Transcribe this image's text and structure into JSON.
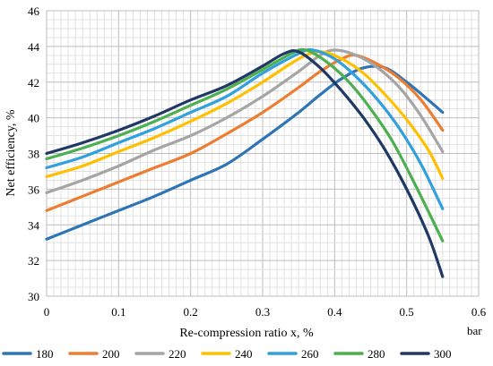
{
  "chart_data": {
    "type": "line",
    "title": "",
    "xlabel": "Re-compression ratio x, %",
    "ylabel": "Net efficiency, %",
    "legend_title": "bar",
    "legend_position": "bottom",
    "xlim": [
      0,
      0.6
    ],
    "ylim": [
      30,
      46
    ],
    "xticks": [
      "0",
      "0.1",
      "0.2",
      "0.3",
      "0.4",
      "0.5",
      "0.6"
    ],
    "yticks": [
      "30",
      "32",
      "34",
      "36",
      "38",
      "40",
      "42",
      "44",
      "46"
    ],
    "grid": true,
    "series": [
      {
        "name": "180",
        "color": "#2E75B6",
        "points": [
          [
            0,
            33.2
          ],
          [
            0.05,
            34.0
          ],
          [
            0.1,
            34.8
          ],
          [
            0.15,
            35.6
          ],
          [
            0.2,
            36.5
          ],
          [
            0.25,
            37.4
          ],
          [
            0.3,
            38.8
          ],
          [
            0.35,
            40.3
          ],
          [
            0.38,
            41.3
          ],
          [
            0.41,
            42.2
          ],
          [
            0.44,
            42.8
          ],
          [
            0.47,
            42.8
          ],
          [
            0.5,
            42.0
          ],
          [
            0.53,
            41.0
          ],
          [
            0.55,
            40.3
          ]
        ]
      },
      {
        "name": "200",
        "color": "#ED7D31",
        "points": [
          [
            0,
            34.8
          ],
          [
            0.05,
            35.6
          ],
          [
            0.1,
            36.4
          ],
          [
            0.15,
            37.2
          ],
          [
            0.2,
            38.0
          ],
          [
            0.25,
            39.1
          ],
          [
            0.3,
            40.3
          ],
          [
            0.35,
            41.7
          ],
          [
            0.38,
            42.6
          ],
          [
            0.41,
            43.3
          ],
          [
            0.43,
            43.5
          ],
          [
            0.46,
            43.0
          ],
          [
            0.49,
            42.2
          ],
          [
            0.52,
            41.0
          ],
          [
            0.55,
            39.3
          ]
        ]
      },
      {
        "name": "220",
        "color": "#A5A5A5",
        "points": [
          [
            0,
            35.8
          ],
          [
            0.05,
            36.5
          ],
          [
            0.1,
            37.3
          ],
          [
            0.15,
            38.2
          ],
          [
            0.2,
            39.0
          ],
          [
            0.25,
            40.0
          ],
          [
            0.3,
            41.2
          ],
          [
            0.35,
            42.6
          ],
          [
            0.38,
            43.5
          ],
          [
            0.4,
            43.8
          ],
          [
            0.43,
            43.5
          ],
          [
            0.46,
            42.8
          ],
          [
            0.49,
            41.7
          ],
          [
            0.52,
            40.1
          ],
          [
            0.55,
            38.1
          ]
        ]
      },
      {
        "name": "240",
        "color": "#FFC000",
        "points": [
          [
            0,
            36.7
          ],
          [
            0.05,
            37.3
          ],
          [
            0.1,
            38.1
          ],
          [
            0.15,
            38.9
          ],
          [
            0.2,
            39.8
          ],
          [
            0.25,
            40.8
          ],
          [
            0.3,
            42.0
          ],
          [
            0.35,
            43.3
          ],
          [
            0.38,
            43.7
          ],
          [
            0.41,
            43.3
          ],
          [
            0.44,
            42.5
          ],
          [
            0.47,
            41.3
          ],
          [
            0.5,
            39.9
          ],
          [
            0.53,
            38.2
          ],
          [
            0.55,
            36.6
          ]
        ]
      },
      {
        "name": "260",
        "color": "#31A0DC",
        "points": [
          [
            0,
            37.2
          ],
          [
            0.05,
            37.8
          ],
          [
            0.1,
            38.6
          ],
          [
            0.15,
            39.4
          ],
          [
            0.2,
            40.3
          ],
          [
            0.25,
            41.2
          ],
          [
            0.3,
            42.5
          ],
          [
            0.35,
            43.6
          ],
          [
            0.37,
            43.8
          ],
          [
            0.4,
            43.3
          ],
          [
            0.43,
            42.3
          ],
          [
            0.46,
            41.0
          ],
          [
            0.49,
            39.4
          ],
          [
            0.52,
            37.4
          ],
          [
            0.55,
            34.9
          ]
        ]
      },
      {
        "name": "280",
        "color": "#4CAF50",
        "points": [
          [
            0,
            37.7
          ],
          [
            0.05,
            38.3
          ],
          [
            0.1,
            39.0
          ],
          [
            0.15,
            39.8
          ],
          [
            0.2,
            40.7
          ],
          [
            0.25,
            41.6
          ],
          [
            0.3,
            42.7
          ],
          [
            0.34,
            43.6
          ],
          [
            0.36,
            43.8
          ],
          [
            0.39,
            43.1
          ],
          [
            0.42,
            42.0
          ],
          [
            0.45,
            40.5
          ],
          [
            0.48,
            38.7
          ],
          [
            0.51,
            36.4
          ],
          [
            0.55,
            33.1
          ]
        ]
      },
      {
        "name": "300",
        "color": "#1F3864",
        "points": [
          [
            0,
            38.0
          ],
          [
            0.05,
            38.6
          ],
          [
            0.1,
            39.3
          ],
          [
            0.15,
            40.1
          ],
          [
            0.2,
            41.0
          ],
          [
            0.25,
            41.8
          ],
          [
            0.3,
            42.9
          ],
          [
            0.33,
            43.6
          ],
          [
            0.35,
            43.7
          ],
          [
            0.38,
            42.8
          ],
          [
            0.41,
            41.5
          ],
          [
            0.44,
            40.0
          ],
          [
            0.47,
            38.2
          ],
          [
            0.5,
            36.0
          ],
          [
            0.53,
            33.4
          ],
          [
            0.55,
            31.1
          ]
        ]
      }
    ]
  }
}
